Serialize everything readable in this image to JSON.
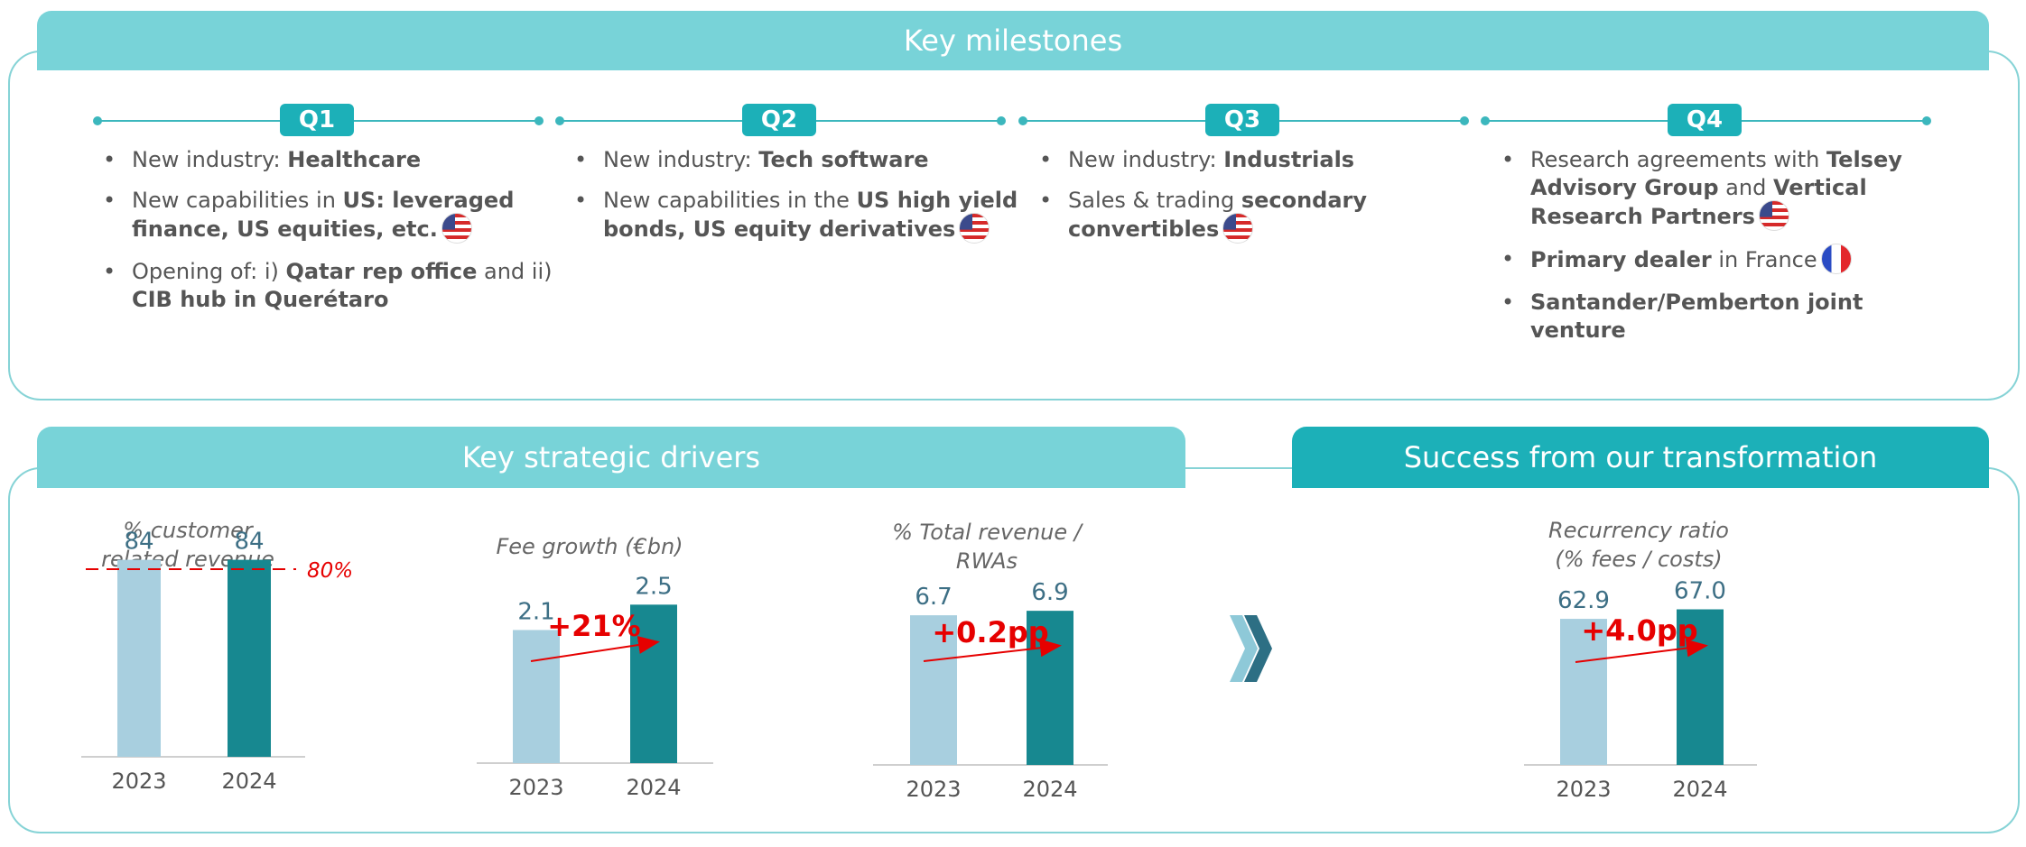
{
  "milestones": {
    "title": "Key milestones",
    "quarters": [
      {
        "label": "Q1",
        "items": [
          {
            "parts": [
              {
                "t": "New industry: ",
                "b": false
              },
              {
                "t": "Healthcare",
                "b": true
              }
            ]
          },
          {
            "parts": [
              {
                "t": "New capabilities in ",
                "b": false
              },
              {
                "t": "US: leveraged finance, US equities, etc.",
                "b": true
              }
            ],
            "flag": "us"
          },
          {
            "parts": [
              {
                "t": "Opening of: i) ",
                "b": false
              },
              {
                "t": "Qatar rep office",
                "b": true
              },
              {
                "t": " and ii) ",
                "b": false
              },
              {
                "t": "CIB hub in Querétaro",
                "b": true
              }
            ]
          }
        ]
      },
      {
        "label": "Q2",
        "items": [
          {
            "parts": [
              {
                "t": "New industry: ",
                "b": false
              },
              {
                "t": "Tech software",
                "b": true
              }
            ]
          },
          {
            "parts": [
              {
                "t": "New capabilities in the ",
                "b": false
              },
              {
                "t": "US high yield bonds, US equity derivatives",
                "b": true
              }
            ],
            "flag": "us"
          }
        ]
      },
      {
        "label": "Q3",
        "items": [
          {
            "parts": [
              {
                "t": "New industry: ",
                "b": false
              },
              {
                "t": "Industrials",
                "b": true
              }
            ]
          },
          {
            "parts": [
              {
                "t": "Sales & trading ",
                "b": false
              },
              {
                "t": "secondary convertibles",
                "b": true
              }
            ],
            "flag": "us"
          }
        ]
      },
      {
        "label": "Q4",
        "items": [
          {
            "parts": [
              {
                "t": "Research agreements with ",
                "b": false
              },
              {
                "t": "Telsey Advisory Group",
                "b": true
              },
              {
                "t": " and ",
                "b": false
              },
              {
                "t": "Vertical Research Partners",
                "b": true
              }
            ],
            "flag": "us"
          },
          {
            "parts": [
              {
                "t": "Primary dealer",
                "b": true
              },
              {
                "t": " in France",
                "b": false
              }
            ],
            "flag": "fr"
          },
          {
            "parts": [
              {
                "t": "Santander/Pemberton joint venture",
                "b": true
              }
            ]
          }
        ]
      }
    ]
  },
  "drivers": {
    "title": "Key strategic drivers"
  },
  "success": {
    "title": "Success from our transformation"
  },
  "colors": {
    "bar_2023": "#a8cfdf",
    "bar_2024": "#178890",
    "value_text": "#3d6f85",
    "accent_red": "#e60000",
    "axis": "#cfcfcf",
    "chevron_light": "#8ec9d8",
    "chevron_dark": "#2d6f84"
  },
  "chart_data": [
    {
      "type": "bar",
      "title": "% customer related revenue",
      "categories": [
        "2023",
        "2024"
      ],
      "values": [
        84,
        84
      ],
      "value_labels": [
        "84",
        "84"
      ],
      "reference": {
        "value": 80,
        "label": "80%"
      },
      "ylim": [
        0,
        100
      ]
    },
    {
      "type": "bar",
      "title": "Fee growth (€bn)",
      "categories": [
        "2023",
        "2024"
      ],
      "values": [
        2.1,
        2.5
      ],
      "value_labels": [
        "2.1",
        "2.5"
      ],
      "change": "+21%",
      "ylim": [
        0,
        3.7
      ]
    },
    {
      "type": "bar",
      "title": "% Total revenue / RWAs",
      "categories": [
        "2023",
        "2024"
      ],
      "values": [
        6.7,
        6.9
      ],
      "value_labels": [
        "6.7",
        "6.9"
      ],
      "change": "+0.2pp",
      "ylim": [
        0,
        10.5
      ]
    },
    {
      "type": "bar",
      "title": "Recurrency ratio (% fees / costs)",
      "categories": [
        "2023",
        "2024"
      ],
      "values": [
        62.9,
        67.0
      ],
      "value_labels": [
        "62.9",
        "67.0"
      ],
      "change": "+4.0pp",
      "ylim": [
        0,
        101
      ]
    }
  ]
}
